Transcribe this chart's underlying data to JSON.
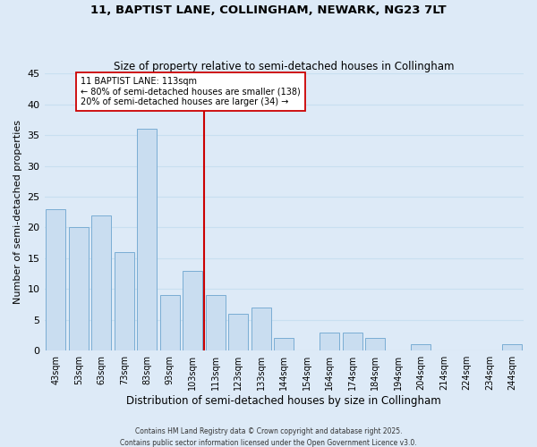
{
  "title1": "11, BAPTIST LANE, COLLINGHAM, NEWARK, NG23 7LT",
  "title2": "Size of property relative to semi-detached houses in Collingham",
  "xlabel": "Distribution of semi-detached houses by size in Collingham",
  "ylabel": "Number of semi-detached properties",
  "categories": [
    "43sqm",
    "53sqm",
    "63sqm",
    "73sqm",
    "83sqm",
    "93sqm",
    "103sqm",
    "113sqm",
    "123sqm",
    "133sqm",
    "144sqm",
    "154sqm",
    "164sqm",
    "174sqm",
    "184sqm",
    "194sqm",
    "204sqm",
    "214sqm",
    "224sqm",
    "234sqm",
    "244sqm"
  ],
  "values": [
    23,
    20,
    22,
    16,
    36,
    9,
    13,
    9,
    6,
    7,
    2,
    0,
    3,
    3,
    2,
    0,
    1,
    0,
    0,
    0,
    1
  ],
  "bar_color": "#c9ddf0",
  "bar_edge_color": "#7aadd4",
  "grid_color": "#c8dff0",
  "background_color": "#ddeaf7",
  "vline_color": "#cc0000",
  "annotation_title": "11 BAPTIST LANE: 113sqm",
  "annotation_line1": "← 80% of semi-detached houses are smaller (138)",
  "annotation_line2": "20% of semi-detached houses are larger (34) →",
  "annotation_box_edge": "#cc0000",
  "ylim": [
    0,
    45
  ],
  "yticks": [
    0,
    5,
    10,
    15,
    20,
    25,
    30,
    35,
    40,
    45
  ],
  "footnote1": "Contains HM Land Registry data © Crown copyright and database right 2025.",
  "footnote2": "Contains public sector information licensed under the Open Government Licence v3.0."
}
